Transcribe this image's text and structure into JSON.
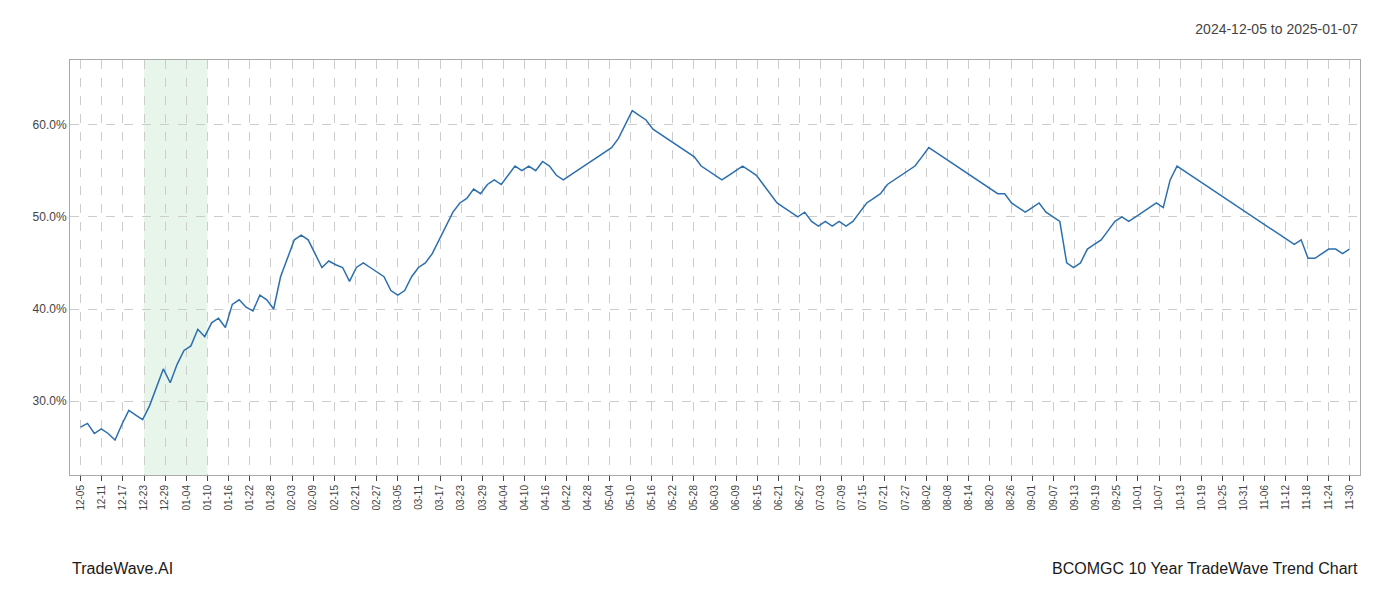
{
  "chart_data": {
    "type": "line",
    "title": "2024-12-05 to 2025-01-07",
    "annotations": [
      "TradeWave.AI",
      "BCOMGC 10 Year TradeWave Trend Chart"
    ],
    "color": "#2c6fad",
    "band": [
      3,
      6
    ],
    "band_color": "#d4edda",
    "grid": true,
    "xlim": [
      -0.5,
      60.5
    ],
    "xticks": [
      {
        "value": 0,
        "label": "12-05"
      },
      {
        "value": 1,
        "label": "12-11"
      },
      {
        "value": 2,
        "label": "12-17"
      },
      {
        "value": 3,
        "label": "12-23"
      },
      {
        "value": 4,
        "label": "12-29"
      },
      {
        "value": 5,
        "label": "01-04"
      },
      {
        "value": 6,
        "label": "01-10"
      },
      {
        "value": 7,
        "label": "01-16"
      },
      {
        "value": 8,
        "label": "01-22"
      },
      {
        "value": 9,
        "label": "01-28"
      },
      {
        "value": 10,
        "label": "02-03"
      },
      {
        "value": 11,
        "label": "02-09"
      },
      {
        "value": 12,
        "label": "02-15"
      },
      {
        "value": 13,
        "label": "02-21"
      },
      {
        "value": 14,
        "label": "02-27"
      },
      {
        "value": 15,
        "label": "03-05"
      },
      {
        "value": 16,
        "label": "03-11"
      },
      {
        "value": 17,
        "label": "03-17"
      },
      {
        "value": 18,
        "label": "03-23"
      },
      {
        "value": 19,
        "label": "03-29"
      },
      {
        "value": 20,
        "label": "04-04"
      },
      {
        "value": 21,
        "label": "04-10"
      },
      {
        "value": 22,
        "label": "04-16"
      },
      {
        "value": 23,
        "label": "04-22"
      },
      {
        "value": 24,
        "label": "04-28"
      },
      {
        "value": 25,
        "label": "05-04"
      },
      {
        "value": 26,
        "label": "05-10"
      },
      {
        "value": 27,
        "label": "05-16"
      },
      {
        "value": 28,
        "label": "05-22"
      },
      {
        "value": 29,
        "label": "05-28"
      },
      {
        "value": 30,
        "label": "06-03"
      },
      {
        "value": 31,
        "label": "06-09"
      },
      {
        "value": 32,
        "label": "06-15"
      },
      {
        "value": 33,
        "label": "06-21"
      },
      {
        "value": 34,
        "label": "06-27"
      },
      {
        "value": 35,
        "label": "07-03"
      },
      {
        "value": 36,
        "label": "07-09"
      },
      {
        "value": 37,
        "label": "07-15"
      },
      {
        "value": 38,
        "label": "07-21"
      },
      {
        "value": 39,
        "label": "07-27"
      },
      {
        "value": 40,
        "label": "08-02"
      },
      {
        "value": 41,
        "label": "08-08"
      },
      {
        "value": 42,
        "label": "08-14"
      },
      {
        "value": 43,
        "label": "08-20"
      },
      {
        "value": 44,
        "label": "08-26"
      },
      {
        "value": 45,
        "label": "09-01"
      },
      {
        "value": 46,
        "label": "09-07"
      },
      {
        "value": 47,
        "label": "09-13"
      },
      {
        "value": 48,
        "label": "09-19"
      },
      {
        "value": 49,
        "label": "09-25"
      },
      {
        "value": 50,
        "label": "10-01"
      },
      {
        "value": 51,
        "label": "10-07"
      },
      {
        "value": 52,
        "label": "10-13"
      },
      {
        "value": 53,
        "label": "10-19"
      },
      {
        "value": 54,
        "label": "10-25"
      },
      {
        "value": 55,
        "label": "10-31"
      },
      {
        "value": 56,
        "label": "11-06"
      },
      {
        "value": 57,
        "label": "11-12"
      },
      {
        "value": 58,
        "label": "11-18"
      },
      {
        "value": 59,
        "label": "11-24"
      },
      {
        "value": 60,
        "label": "11-30"
      }
    ],
    "ylim": [
      22,
      67
    ],
    "yticks": [
      {
        "value": 30.0,
        "label": "30.0%"
      },
      {
        "value": 40.0,
        "label": "40.0%"
      },
      {
        "value": 50.0,
        "label": "50.0%"
      },
      {
        "value": 60.0,
        "label": "60.0%"
      }
    ],
    "values": [
      27.2,
      27.6,
      26.5,
      27.0,
      26.5,
      25.8,
      27.5,
      29.0,
      28.5,
      28.0,
      29.5,
      31.5,
      33.5,
      32.0,
      34.0,
      35.5,
      36.0,
      37.8,
      37.0,
      38.5,
      39.0,
      38.0,
      40.5,
      41.0,
      40.2,
      39.8,
      41.5,
      41.0,
      40.0,
      43.5,
      45.5,
      47.5,
      48.0,
      47.5,
      46.0,
      44.5,
      45.2,
      44.8,
      44.5,
      43.0,
      44.5,
      45.0,
      44.5,
      44.0,
      43.5,
      42.0,
      41.5,
      42.0,
      43.5,
      44.5,
      45.0,
      46.0,
      47.5,
      49.0,
      50.5,
      51.5,
      52.0,
      53.0,
      52.5,
      53.5,
      54.0,
      53.5,
      54.5,
      55.5,
      55.0,
      55.5,
      55.0,
      56.0,
      55.5,
      54.5,
      54.0,
      54.5,
      55.0,
      55.5,
      56.0,
      56.5,
      57.0,
      57.5,
      58.5,
      60.0,
      61.5,
      61.0,
      60.5,
      59.5,
      59.0,
      58.5,
      58.0,
      57.5,
      57.0,
      56.5,
      55.5,
      55.0,
      54.5,
      54.0,
      54.5,
      55.0,
      55.5,
      55.0,
      54.5,
      53.5,
      52.5,
      51.5,
      51.0,
      50.5,
      50.0,
      50.5,
      49.5,
      49.0,
      49.5,
      49.0,
      49.5,
      49.0,
      49.5,
      50.5,
      51.5,
      52.0,
      52.5,
      53.5,
      54.0,
      54.5,
      55.0,
      55.5,
      56.5,
      57.5,
      57.0,
      56.5,
      56.0,
      55.5,
      55.0,
      54.5,
      54.0,
      53.5,
      53.0,
      52.5,
      52.5,
      51.5,
      51.0,
      50.5,
      51.0,
      51.5,
      50.5,
      50.0,
      49.5,
      45.0,
      44.5,
      45.0,
      46.5,
      47.0,
      47.5,
      48.5,
      49.5,
      50.0,
      49.5,
      50.0,
      50.5,
      51.0,
      51.5,
      51.0,
      54.0,
      55.5,
      55.0,
      54.5,
      54.0,
      53.5,
      53.0,
      52.5,
      52.0,
      51.5,
      51.0,
      50.5,
      50.0,
      49.5,
      49.0,
      48.5,
      48.0,
      47.5,
      47.0,
      47.5,
      45.5,
      45.5,
      46.0,
      46.5,
      46.5,
      46.0,
      46.5
    ]
  }
}
